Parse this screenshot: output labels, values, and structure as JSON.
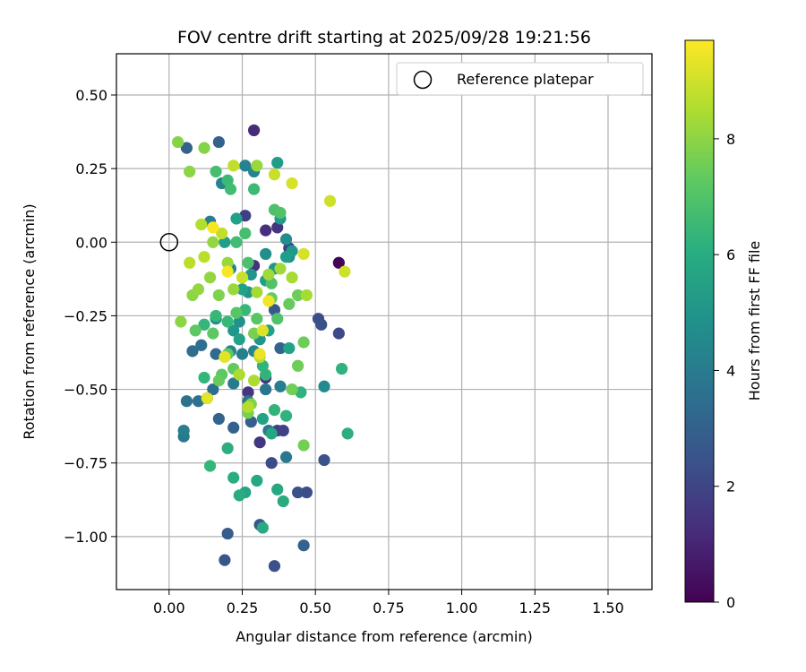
{
  "chart_data": {
    "type": "scatter",
    "title": "FOV centre drift starting at 2025/09/28 19:21:56",
    "xlabel": "Angular distance from reference (arcmin)",
    "ylabel": "Rotation from reference (arcmin)",
    "xlim": [
      -0.18,
      1.65
    ],
    "ylim": [
      -1.18,
      0.64
    ],
    "xticks": [
      0.0,
      0.25,
      0.5,
      0.75,
      1.0,
      1.25,
      1.5
    ],
    "xtick_labels": [
      "0.00",
      "0.25",
      "0.50",
      "0.75",
      "1.00",
      "1.25",
      "1.50"
    ],
    "yticks": [
      0.5,
      0.25,
      0.0,
      -0.25,
      -0.5,
      -0.75,
      -1.0
    ],
    "ytick_labels": [
      "0.50",
      "0.25",
      "0.00",
      "−0.25",
      "−0.50",
      "−0.75",
      "−1.00"
    ],
    "grid": true,
    "legend": {
      "placement": "top-right",
      "label": "Reference platepar"
    },
    "reference_point": {
      "x": 0.0,
      "y": 0.0
    },
    "colorbar": {
      "label": "Hours from first FF file",
      "range": [
        0,
        9.7
      ],
      "ticks": [
        0,
        2,
        4,
        6,
        8
      ],
      "tick_labels": [
        "0",
        "2",
        "4",
        "6",
        "8"
      ],
      "colormap": "viridis"
    },
    "points": [
      {
        "x": 0.58,
        "y": -0.07,
        "h": 0.1
      },
      {
        "x": 0.29,
        "y": 0.38,
        "h": 1.2
      },
      {
        "x": 0.33,
        "y": 0.04,
        "h": 1.3
      },
      {
        "x": 0.37,
        "y": 0.05,
        "h": 1.5
      },
      {
        "x": 0.29,
        "y": -0.08,
        "h": 1.4
      },
      {
        "x": 0.27,
        "y": -0.51,
        "h": 1.5
      },
      {
        "x": 0.31,
        "y": -0.68,
        "h": 1.6
      },
      {
        "x": 0.33,
        "y": -0.46,
        "h": 1.6
      },
      {
        "x": 0.26,
        "y": 0.09,
        "h": 1.8
      },
      {
        "x": 0.37,
        "y": -0.64,
        "h": 1.8
      },
      {
        "x": 0.39,
        "y": -0.64,
        "h": 1.9
      },
      {
        "x": 0.41,
        "y": -0.02,
        "h": 1.8
      },
      {
        "x": 0.58,
        "y": -0.31,
        "h": 2.1
      },
      {
        "x": 0.35,
        "y": -0.75,
        "h": 2.2
      },
      {
        "x": 0.47,
        "y": -0.85,
        "h": 2.3
      },
      {
        "x": 0.44,
        "y": -0.85,
        "h": 2.4
      },
      {
        "x": 0.53,
        "y": -0.74,
        "h": 2.5
      },
      {
        "x": 0.51,
        "y": -0.26,
        "h": 2.3
      },
      {
        "x": 0.52,
        "y": -0.28,
        "h": 2.4
      },
      {
        "x": 0.36,
        "y": -1.1,
        "h": 2.4
      },
      {
        "x": 0.31,
        "y": -0.96,
        "h": 2.6
      },
      {
        "x": 0.19,
        "y": -1.08,
        "h": 2.6
      },
      {
        "x": 0.2,
        "y": -0.99,
        "h": 2.8
      },
      {
        "x": 0.36,
        "y": -0.23,
        "h": 2.7
      },
      {
        "x": 0.28,
        "y": -0.61,
        "h": 2.9
      },
      {
        "x": 0.17,
        "y": 0.34,
        "h": 3.0
      },
      {
        "x": 0.06,
        "y": 0.32,
        "h": 3.0
      },
      {
        "x": 0.22,
        "y": -0.63,
        "h": 3.0
      },
      {
        "x": 0.46,
        "y": -1.03,
        "h": 3.0
      },
      {
        "x": 0.38,
        "y": -0.36,
        "h": 3.1
      },
      {
        "x": 0.17,
        "y": -0.6,
        "h": 3.1
      },
      {
        "x": 0.13,
        "y": -0.53,
        "h": 3.2
      },
      {
        "x": 0.16,
        "y": -0.38,
        "h": 3.3
      },
      {
        "x": 0.08,
        "y": -0.37,
        "h": 3.4
      },
      {
        "x": 0.11,
        "y": -0.35,
        "h": 3.5
      },
      {
        "x": 0.15,
        "y": -0.5,
        "h": 3.5
      },
      {
        "x": 0.1,
        "y": -0.54,
        "h": 3.6
      },
      {
        "x": 0.06,
        "y": -0.54,
        "h": 3.7
      },
      {
        "x": 0.27,
        "y": -0.54,
        "h": 3.7
      },
      {
        "x": 0.33,
        "y": -0.5,
        "h": 3.8
      },
      {
        "x": 0.34,
        "y": -0.64,
        "h": 3.9
      },
      {
        "x": 0.4,
        "y": -0.73,
        "h": 3.9
      },
      {
        "x": 0.05,
        "y": -0.66,
        "h": 3.9
      },
      {
        "x": 0.05,
        "y": -0.64,
        "h": 4.1
      },
      {
        "x": 0.38,
        "y": -0.49,
        "h": 4.1
      },
      {
        "x": 0.22,
        "y": -0.48,
        "h": 4.0
      },
      {
        "x": 0.14,
        "y": 0.07,
        "h": 4.1
      },
      {
        "x": 0.25,
        "y": -0.38,
        "h": 4.2
      },
      {
        "x": 0.18,
        "y": 0.2,
        "h": 4.3
      },
      {
        "x": 0.26,
        "y": 0.26,
        "h": 4.3
      },
      {
        "x": 0.29,
        "y": 0.24,
        "h": 4.4
      },
      {
        "x": 0.21,
        "y": -0.09,
        "h": 4.5
      },
      {
        "x": 0.21,
        "y": -0.37,
        "h": 4.5
      },
      {
        "x": 0.29,
        "y": -0.37,
        "h": 4.4
      },
      {
        "x": 0.53,
        "y": -0.49,
        "h": 4.6
      },
      {
        "x": 0.4,
        "y": 0.01,
        "h": 4.7
      },
      {
        "x": 0.41,
        "y": -0.05,
        "h": 4.8
      },
      {
        "x": 0.33,
        "y": -0.04,
        "h": 4.8
      },
      {
        "x": 0.24,
        "y": -0.27,
        "h": 4.9
      },
      {
        "x": 0.16,
        "y": -0.26,
        "h": 4.9
      },
      {
        "x": 0.27,
        "y": -0.17,
        "h": 5.0
      },
      {
        "x": 0.28,
        "y": -0.11,
        "h": 5.0
      },
      {
        "x": 0.31,
        "y": -0.33,
        "h": 5.0
      },
      {
        "x": 0.22,
        "y": -0.3,
        "h": 5.1
      },
      {
        "x": 0.36,
        "y": -0.09,
        "h": 5.1
      },
      {
        "x": 0.42,
        "y": -0.03,
        "h": 5.2
      },
      {
        "x": 0.37,
        "y": 0.27,
        "h": 5.3
      },
      {
        "x": 0.38,
        "y": 0.08,
        "h": 5.3
      },
      {
        "x": 0.4,
        "y": -0.05,
        "h": 5.4
      },
      {
        "x": 0.19,
        "y": 0.0,
        "h": 5.4
      },
      {
        "x": 0.33,
        "y": -0.13,
        "h": 5.4
      },
      {
        "x": 0.23,
        "y": 0.08,
        "h": 5.5
      },
      {
        "x": 0.25,
        "y": -0.16,
        "h": 5.5
      },
      {
        "x": 0.34,
        "y": -0.3,
        "h": 5.5
      },
      {
        "x": 0.24,
        "y": -0.33,
        "h": 5.5
      },
      {
        "x": 0.41,
        "y": -0.36,
        "h": 5.6
      },
      {
        "x": 0.32,
        "y": -0.6,
        "h": 5.6
      },
      {
        "x": 0.35,
        "y": -0.65,
        "h": 5.7
      },
      {
        "x": 0.26,
        "y": -0.85,
        "h": 5.7
      },
      {
        "x": 0.3,
        "y": -0.81,
        "h": 5.8
      },
      {
        "x": 0.37,
        "y": -0.84,
        "h": 5.8
      },
      {
        "x": 0.39,
        "y": -0.88,
        "h": 5.9
      },
      {
        "x": 0.32,
        "y": -0.97,
        "h": 5.9
      },
      {
        "x": 0.24,
        "y": -0.86,
        "h": 6.0
      },
      {
        "x": 0.22,
        "y": -0.8,
        "h": 6.0
      },
      {
        "x": 0.2,
        "y": -0.7,
        "h": 6.1
      },
      {
        "x": 0.61,
        "y": -0.65,
        "h": 6.1
      },
      {
        "x": 0.59,
        "y": -0.43,
        "h": 6.2
      },
      {
        "x": 0.45,
        "y": -0.51,
        "h": 6.2
      },
      {
        "x": 0.4,
        "y": -0.59,
        "h": 6.2
      },
      {
        "x": 0.33,
        "y": -0.45,
        "h": 6.3
      },
      {
        "x": 0.32,
        "y": -0.42,
        "h": 6.3
      },
      {
        "x": 0.36,
        "y": -0.57,
        "h": 6.3
      },
      {
        "x": 0.14,
        "y": -0.76,
        "h": 6.4
      },
      {
        "x": 0.12,
        "y": -0.46,
        "h": 6.4
      },
      {
        "x": 0.12,
        "y": -0.28,
        "h": 6.4
      },
      {
        "x": 0.16,
        "y": -0.25,
        "h": 6.5
      },
      {
        "x": 0.2,
        "y": -0.27,
        "h": 6.5
      },
      {
        "x": 0.26,
        "y": -0.23,
        "h": 6.5
      },
      {
        "x": 0.29,
        "y": 0.18,
        "h": 6.6
      },
      {
        "x": 0.2,
        "y": 0.21,
        "h": 6.6
      },
      {
        "x": 0.21,
        "y": 0.18,
        "h": 6.7
      },
      {
        "x": 0.23,
        "y": 0.0,
        "h": 6.7
      },
      {
        "x": 0.26,
        "y": 0.03,
        "h": 6.8
      },
      {
        "x": 0.16,
        "y": 0.24,
        "h": 6.8
      },
      {
        "x": 0.27,
        "y": -0.07,
        "h": 6.9
      },
      {
        "x": 0.36,
        "y": 0.11,
        "h": 6.9
      },
      {
        "x": 0.38,
        "y": 0.1,
        "h": 7.0
      },
      {
        "x": 0.35,
        "y": -0.14,
        "h": 7.0
      },
      {
        "x": 0.37,
        "y": -0.26,
        "h": 7.0
      },
      {
        "x": 0.3,
        "y": -0.26,
        "h": 7.1
      },
      {
        "x": 0.23,
        "y": -0.24,
        "h": 7.1
      },
      {
        "x": 0.15,
        "y": -0.31,
        "h": 7.2
      },
      {
        "x": 0.09,
        "y": -0.3,
        "h": 7.2
      },
      {
        "x": 0.18,
        "y": -0.45,
        "h": 7.2
      },
      {
        "x": 0.2,
        "y": -0.38,
        "h": 7.3
      },
      {
        "x": 0.22,
        "y": -0.43,
        "h": 7.3
      },
      {
        "x": 0.17,
        "y": -0.47,
        "h": 7.4
      },
      {
        "x": 0.35,
        "y": -0.19,
        "h": 7.4
      },
      {
        "x": 0.41,
        "y": -0.21,
        "h": 7.4
      },
      {
        "x": 0.44,
        "y": -0.18,
        "h": 7.5
      },
      {
        "x": 0.46,
        "y": -0.34,
        "h": 7.5
      },
      {
        "x": 0.44,
        "y": -0.42,
        "h": 7.5
      },
      {
        "x": 0.42,
        "y": -0.5,
        "h": 7.6
      },
      {
        "x": 0.46,
        "y": -0.69,
        "h": 7.6
      },
      {
        "x": 0.29,
        "y": -0.31,
        "h": 7.7
      },
      {
        "x": 0.27,
        "y": -0.58,
        "h": 7.7
      },
      {
        "x": 0.28,
        "y": -0.55,
        "h": 7.8
      },
      {
        "x": 0.17,
        "y": -0.18,
        "h": 7.8
      },
      {
        "x": 0.12,
        "y": 0.32,
        "h": 7.9
      },
      {
        "x": 0.03,
        "y": 0.34,
        "h": 7.9
      },
      {
        "x": 0.07,
        "y": 0.24,
        "h": 8.0
      },
      {
        "x": 0.04,
        "y": -0.27,
        "h": 8.0
      },
      {
        "x": 0.08,
        "y": -0.18,
        "h": 8.0
      },
      {
        "x": 0.1,
        "y": -0.16,
        "h": 8.1
      },
      {
        "x": 0.14,
        "y": -0.12,
        "h": 8.1
      },
      {
        "x": 0.15,
        "y": 0.0,
        "h": 8.1
      },
      {
        "x": 0.2,
        "y": -0.07,
        "h": 8.2
      },
      {
        "x": 0.22,
        "y": -0.16,
        "h": 8.2
      },
      {
        "x": 0.3,
        "y": 0.26,
        "h": 8.2
      },
      {
        "x": 0.34,
        "y": -0.11,
        "h": 8.3
      },
      {
        "x": 0.38,
        "y": -0.09,
        "h": 8.3
      },
      {
        "x": 0.42,
        "y": -0.12,
        "h": 8.4
      },
      {
        "x": 0.47,
        "y": -0.18,
        "h": 8.4
      },
      {
        "x": 0.3,
        "y": -0.17,
        "h": 8.4
      },
      {
        "x": 0.24,
        "y": -0.45,
        "h": 8.5
      },
      {
        "x": 0.29,
        "y": -0.47,
        "h": 8.5
      },
      {
        "x": 0.31,
        "y": -0.39,
        "h": 8.6
      },
      {
        "x": 0.27,
        "y": -0.56,
        "h": 8.6
      },
      {
        "x": 0.11,
        "y": 0.06,
        "h": 8.6
      },
      {
        "x": 0.07,
        "y": -0.07,
        "h": 8.7
      },
      {
        "x": 0.12,
        "y": -0.05,
        "h": 8.7
      },
      {
        "x": 0.18,
        "y": 0.03,
        "h": 8.8
      },
      {
        "x": 0.22,
        "y": 0.26,
        "h": 8.8
      },
      {
        "x": 0.25,
        "y": -0.12,
        "h": 8.9
      },
      {
        "x": 0.36,
        "y": 0.23,
        "h": 8.9
      },
      {
        "x": 0.55,
        "y": 0.14,
        "h": 9.0
      },
      {
        "x": 0.6,
        "y": -0.1,
        "h": 9.0
      },
      {
        "x": 0.42,
        "y": 0.2,
        "h": 9.1
      },
      {
        "x": 0.46,
        "y": -0.04,
        "h": 9.1
      },
      {
        "x": 0.32,
        "y": -0.3,
        "h": 9.2
      },
      {
        "x": 0.19,
        "y": -0.39,
        "h": 9.3
      },
      {
        "x": 0.13,
        "y": -0.53,
        "h": 9.3
      },
      {
        "x": 0.34,
        "y": -0.2,
        "h": 9.5
      },
      {
        "x": 0.31,
        "y": -0.38,
        "h": 9.4
      },
      {
        "x": 0.2,
        "y": -0.1,
        "h": 9.6
      },
      {
        "x": 0.15,
        "y": 0.05,
        "h": 9.6
      }
    ]
  }
}
